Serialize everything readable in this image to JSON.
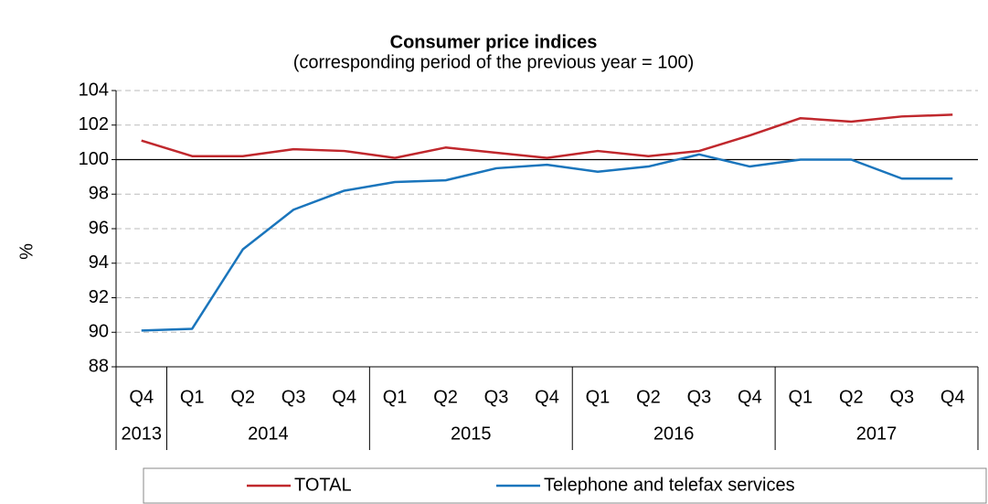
{
  "chart_data": {
    "type": "line",
    "title": "Consumer price indices",
    "subtitle": "(corresponding period of the previous year = 100)",
    "y_label": "%",
    "categories": [
      "Q4",
      "Q1",
      "Q2",
      "Q3",
      "Q4",
      "Q1",
      "Q2",
      "Q3",
      "Q4",
      "Q1",
      "Q2",
      "Q3",
      "Q4",
      "Q1",
      "Q2",
      "Q3",
      "Q4"
    ],
    "category_groups": [
      {
        "label": "2013",
        "size": 1
      },
      {
        "label": "2014",
        "size": 4
      },
      {
        "label": "2015",
        "size": 4
      },
      {
        "label": "2016",
        "size": 4
      },
      {
        "label": "2017",
        "size": 4
      }
    ],
    "series": [
      {
        "name": "TOTAL",
        "color": "#c0282d",
        "values": [
          101.1,
          100.2,
          100.2,
          100.6,
          100.5,
          100.1,
          100.7,
          100.4,
          100.1,
          100.5,
          100.2,
          100.5,
          101.4,
          102.4,
          102.2,
          102.5,
          102.6
        ]
      },
      {
        "name": "Telephone and telefax services",
        "color": "#1a75bc",
        "values": [
          90.1,
          90.2,
          94.8,
          97.1,
          98.2,
          98.7,
          98.8,
          99.5,
          99.7,
          99.3,
          99.6,
          100.3,
          99.6,
          100.0,
          100.0,
          98.9,
          98.9
        ]
      }
    ],
    "ylim": [
      88,
      104
    ],
    "yticks": [
      88,
      90,
      92,
      94,
      96,
      98,
      100,
      102,
      104
    ],
    "reference_line": 100,
    "grid": true,
    "legend": "bottom"
  }
}
